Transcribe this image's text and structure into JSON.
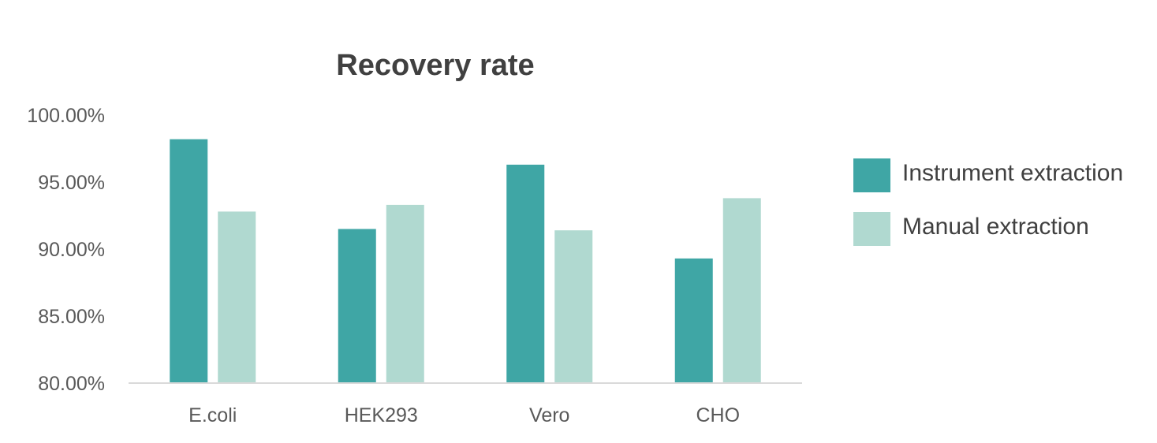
{
  "chart_data": {
    "type": "bar",
    "title": "Recovery rate",
    "xlabel": "",
    "ylabel": "",
    "categories": [
      "E.coli",
      "HEK293",
      "Vero",
      "CHO"
    ],
    "series": [
      {
        "name": "Instrument extraction",
        "values": [
          98.2,
          91.5,
          96.3,
          89.3
        ],
        "color": "#3fa6a5"
      },
      {
        "name": "Manual extraction",
        "values": [
          92.8,
          93.3,
          91.4,
          93.8
        ],
        "color": "#b0d9d0"
      }
    ],
    "ylim": [
      80,
      100
    ],
    "yticks": [
      "80.00%",
      "85.00%",
      "90.00%",
      "95.00%",
      "100.00%"
    ],
    "ytick_values": [
      80,
      85,
      90,
      95,
      100
    ],
    "grid": false,
    "legend_position": "right",
    "colors": {
      "title": "#404040",
      "tick_label": "#595959",
      "legend_text": "#404040",
      "axis_line": "#d9d9d9"
    }
  }
}
